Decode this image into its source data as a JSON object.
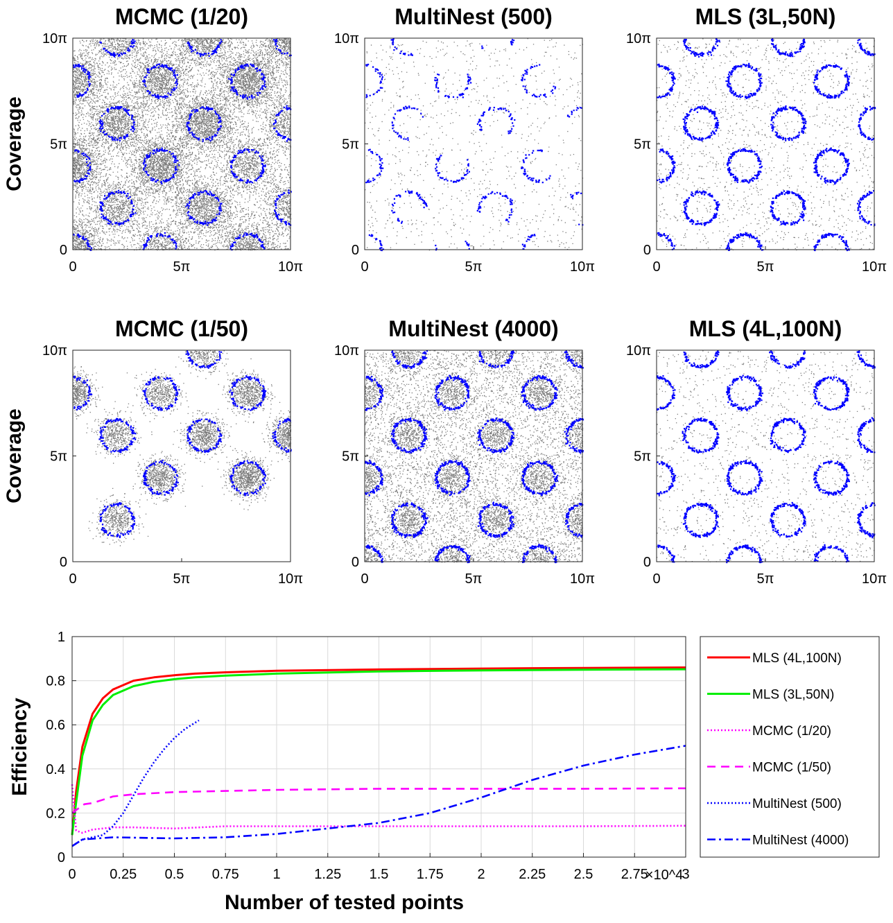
{
  "chart_data": [
    {
      "type": "scatter",
      "title": "MCMC (1/20)",
      "ylabel": "Coverage",
      "xticks": [
        "0",
        "5π",
        "10π"
      ],
      "yticks": [
        "0",
        "5π",
        "10π"
      ],
      "xlim": [
        0,
        31.416
      ],
      "ylim": [
        0,
        31.416
      ],
      "density": "heavy"
    },
    {
      "type": "scatter",
      "title": "MultiNest (500)",
      "ylabel": "",
      "xticks": [
        "0",
        "5π",
        "10π"
      ],
      "yticks": [
        "0",
        "5π",
        "10π"
      ],
      "xlim": [
        0,
        31.416
      ],
      "ylim": [
        0,
        31.416
      ],
      "density": "sparse"
    },
    {
      "type": "scatter",
      "title": "MLS (3L,50N)",
      "ylabel": "",
      "xticks": [
        "0",
        "5π",
        "10π"
      ],
      "yticks": [
        "0",
        "5π",
        "10π"
      ],
      "xlim": [
        0,
        31.416
      ],
      "ylim": [
        0,
        31.416
      ],
      "density": "uniform"
    },
    {
      "type": "scatter",
      "title": "MCMC (1/50)",
      "ylabel": "Coverage",
      "xticks": [
        "0",
        "5π",
        "10π"
      ],
      "yticks": [
        "0",
        "5π",
        "10π"
      ],
      "xlim": [
        0,
        31.416
      ],
      "ylim": [
        0,
        31.416
      ],
      "density": "clustered"
    },
    {
      "type": "scatter",
      "title": "MultiNest (4000)",
      "ylabel": "",
      "xticks": [
        "0",
        "5π",
        "10π"
      ],
      "yticks": [
        "0",
        "5π",
        "10π"
      ],
      "xlim": [
        0,
        31.416
      ],
      "ylim": [
        0,
        31.416
      ],
      "density": "dense"
    },
    {
      "type": "scatter",
      "title": "MLS (4L,100N)",
      "ylabel": "",
      "xticks": [
        "0",
        "5π",
        "10π"
      ],
      "yticks": [
        "0",
        "5π",
        "10π"
      ],
      "xlim": [
        0,
        31.416
      ],
      "ylim": [
        0,
        31.416
      ],
      "density": "uniform"
    },
    {
      "type": "line",
      "title": "",
      "xlabel": "Number of tested points",
      "ylabel": "Efficiency",
      "x_exponent": "×10^4",
      "xlim": [
        0,
        3
      ],
      "ylim": [
        0,
        1
      ],
      "xticks": [
        "0",
        "0.25",
        "0.5",
        "0.75",
        "1",
        "1.25",
        "1.5",
        "1.75",
        "2",
        "2.25",
        "2.5",
        "2.75",
        "3"
      ],
      "yticks": [
        "0",
        "0.2",
        "0.4",
        "0.6",
        "0.8",
        "1"
      ],
      "grid": true,
      "legend_position": "right-outside",
      "series": [
        {
          "name": "MLS (4L,100N)",
          "color": "#ff0000",
          "style": "solid",
          "points": [
            [
              0,
              0.1
            ],
            [
              0.02,
              0.3
            ],
            [
              0.05,
              0.5
            ],
            [
              0.1,
              0.65
            ],
            [
              0.15,
              0.72
            ],
            [
              0.2,
              0.76
            ],
            [
              0.3,
              0.8
            ],
            [
              0.4,
              0.815
            ],
            [
              0.5,
              0.825
            ],
            [
              0.6,
              0.832
            ],
            [
              0.75,
              0.838
            ],
            [
              1,
              0.845
            ],
            [
              1.5,
              0.851
            ],
            [
              2,
              0.855
            ],
            [
              2.5,
              0.858
            ],
            [
              3,
              0.86
            ]
          ]
        },
        {
          "name": "MLS (3L,50N)",
          "color": "#00ee00",
          "style": "solid",
          "points": [
            [
              0,
              0.1
            ],
            [
              0.02,
              0.25
            ],
            [
              0.05,
              0.46
            ],
            [
              0.1,
              0.62
            ],
            [
              0.15,
              0.69
            ],
            [
              0.2,
              0.735
            ],
            [
              0.3,
              0.775
            ],
            [
              0.4,
              0.795
            ],
            [
              0.5,
              0.807
            ],
            [
              0.6,
              0.815
            ],
            [
              0.75,
              0.823
            ],
            [
              1,
              0.832
            ],
            [
              1.5,
              0.842
            ],
            [
              2,
              0.847
            ],
            [
              2.5,
              0.85
            ],
            [
              3,
              0.852
            ]
          ]
        },
        {
          "name": "MCMC (1/20)",
          "color": "#ff00ff",
          "style": "dotted",
          "points": [
            [
              0,
              0.33
            ],
            [
              0.02,
              0.12
            ],
            [
              0.05,
              0.11
            ],
            [
              0.1,
              0.125
            ],
            [
              0.2,
              0.135
            ],
            [
              0.3,
              0.135
            ],
            [
              0.5,
              0.13
            ],
            [
              0.75,
              0.14
            ],
            [
              1,
              0.14
            ],
            [
              1.5,
              0.14
            ],
            [
              2,
              0.14
            ],
            [
              2.5,
              0.14
            ],
            [
              3,
              0.142
            ]
          ]
        },
        {
          "name": "MCMC (1/50)",
          "color": "#ff00ff",
          "style": "dashed",
          "points": [
            [
              0,
              0.2
            ],
            [
              0.03,
              0.22
            ],
            [
              0.06,
              0.24
            ],
            [
              0.1,
              0.245
            ],
            [
              0.15,
              0.26
            ],
            [
              0.2,
              0.275
            ],
            [
              0.3,
              0.285
            ],
            [
              0.5,
              0.295
            ],
            [
              0.75,
              0.3
            ],
            [
              1,
              0.305
            ],
            [
              1.5,
              0.31
            ],
            [
              2,
              0.31
            ],
            [
              2.5,
              0.31
            ],
            [
              3,
              0.312
            ]
          ]
        },
        {
          "name": "MultiNest (500)",
          "color": "#0000ff",
          "style": "dotted",
          "points": [
            [
              0,
              0.05
            ],
            [
              0.05,
              0.08
            ],
            [
              0.1,
              0.09
            ],
            [
              0.15,
              0.1
            ],
            [
              0.2,
              0.14
            ],
            [
              0.25,
              0.2
            ],
            [
              0.3,
              0.28
            ],
            [
              0.35,
              0.36
            ],
            [
              0.4,
              0.43
            ],
            [
              0.45,
              0.49
            ],
            [
              0.5,
              0.54
            ],
            [
              0.55,
              0.58
            ],
            [
              0.62,
              0.62
            ]
          ]
        },
        {
          "name": "MultiNest (4000)",
          "color": "#0000ff",
          "style": "dashdot",
          "points": [
            [
              0,
              0.05
            ],
            [
              0.05,
              0.08
            ],
            [
              0.2,
              0.09
            ],
            [
              0.5,
              0.085
            ],
            [
              0.75,
              0.09
            ],
            [
              1,
              0.105
            ],
            [
              1.25,
              0.13
            ],
            [
              1.5,
              0.155
            ],
            [
              1.75,
              0.2
            ],
            [
              2,
              0.27
            ],
            [
              2.25,
              0.35
            ],
            [
              2.5,
              0.415
            ],
            [
              2.75,
              0.465
            ],
            [
              3,
              0.505
            ]
          ]
        }
      ]
    }
  ]
}
